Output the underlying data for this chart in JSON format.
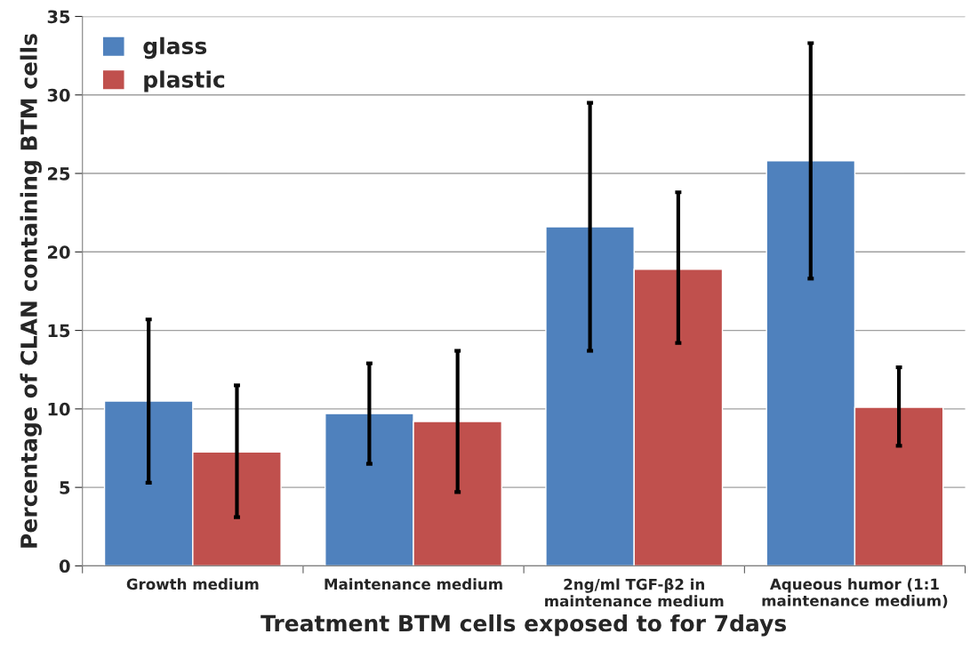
{
  "chart_data": {
    "type": "bar",
    "xlabel": "Treatment BTM cells exposed to for 7days",
    "ylabel": "Percentage of CLAN containing BTM cells",
    "categories": [
      "Growth medium",
      "Maintenance medium",
      "2ng/ml TGF-β2 in\nmaintenance medium",
      "Aqueous humor (1:1\nmaintenance medium)"
    ],
    "series": [
      {
        "name": "glass",
        "color": "#4f81bd",
        "values": [
          10.5,
          9.7,
          21.6,
          25.8
        ],
        "errors": [
          [
            5.3,
            15.7
          ],
          [
            6.5,
            12.9
          ],
          [
            13.7,
            29.5
          ],
          [
            18.3,
            33.3
          ]
        ]
      },
      {
        "name": "plastic",
        "color": "#c0504d",
        "values": [
          7.25,
          9.2,
          18.9,
          10.1
        ],
        "errors": [
          [
            3.1,
            11.5
          ],
          [
            4.7,
            13.7
          ],
          [
            14.2,
            23.8
          ],
          [
            7.65,
            12.65
          ]
        ]
      }
    ],
    "ylim": [
      0,
      35
    ],
    "yticks": [
      0,
      5,
      10,
      15,
      20,
      25,
      30,
      35
    ],
    "grid": "y",
    "legend": "top left"
  }
}
